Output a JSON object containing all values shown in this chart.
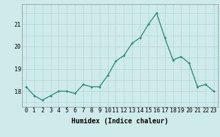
{
  "x": [
    0,
    1,
    2,
    3,
    4,
    5,
    6,
    7,
    8,
    9,
    10,
    11,
    12,
    13,
    14,
    15,
    16,
    17,
    18,
    19,
    20,
    21,
    22,
    23
  ],
  "y": [
    18.2,
    17.8,
    17.6,
    17.8,
    18.0,
    18.0,
    17.9,
    18.3,
    18.2,
    18.2,
    18.7,
    19.35,
    19.6,
    20.15,
    20.4,
    21.0,
    21.5,
    20.4,
    19.4,
    19.55,
    19.25,
    18.2,
    18.3,
    18.0
  ],
  "line_color": "#2e8b75",
  "marker": "D",
  "markersize": 2.0,
  "linewidth": 1.0,
  "bg_color": "#ceeaea",
  "grid_color": "#aed4d4",
  "xlabel": "Humidex (Indice chaleur)",
  "xlabel_fontsize": 7,
  "tick_fontsize": 6,
  "yticks": [
    18,
    19,
    20,
    21
  ],
  "xticks": [
    0,
    1,
    2,
    3,
    4,
    5,
    6,
    7,
    8,
    9,
    10,
    11,
    12,
    13,
    14,
    15,
    16,
    17,
    18,
    19,
    20,
    21,
    22,
    23
  ],
  "xlim": [
    -0.5,
    23.5
  ],
  "ylim": [
    17.3,
    21.9
  ]
}
